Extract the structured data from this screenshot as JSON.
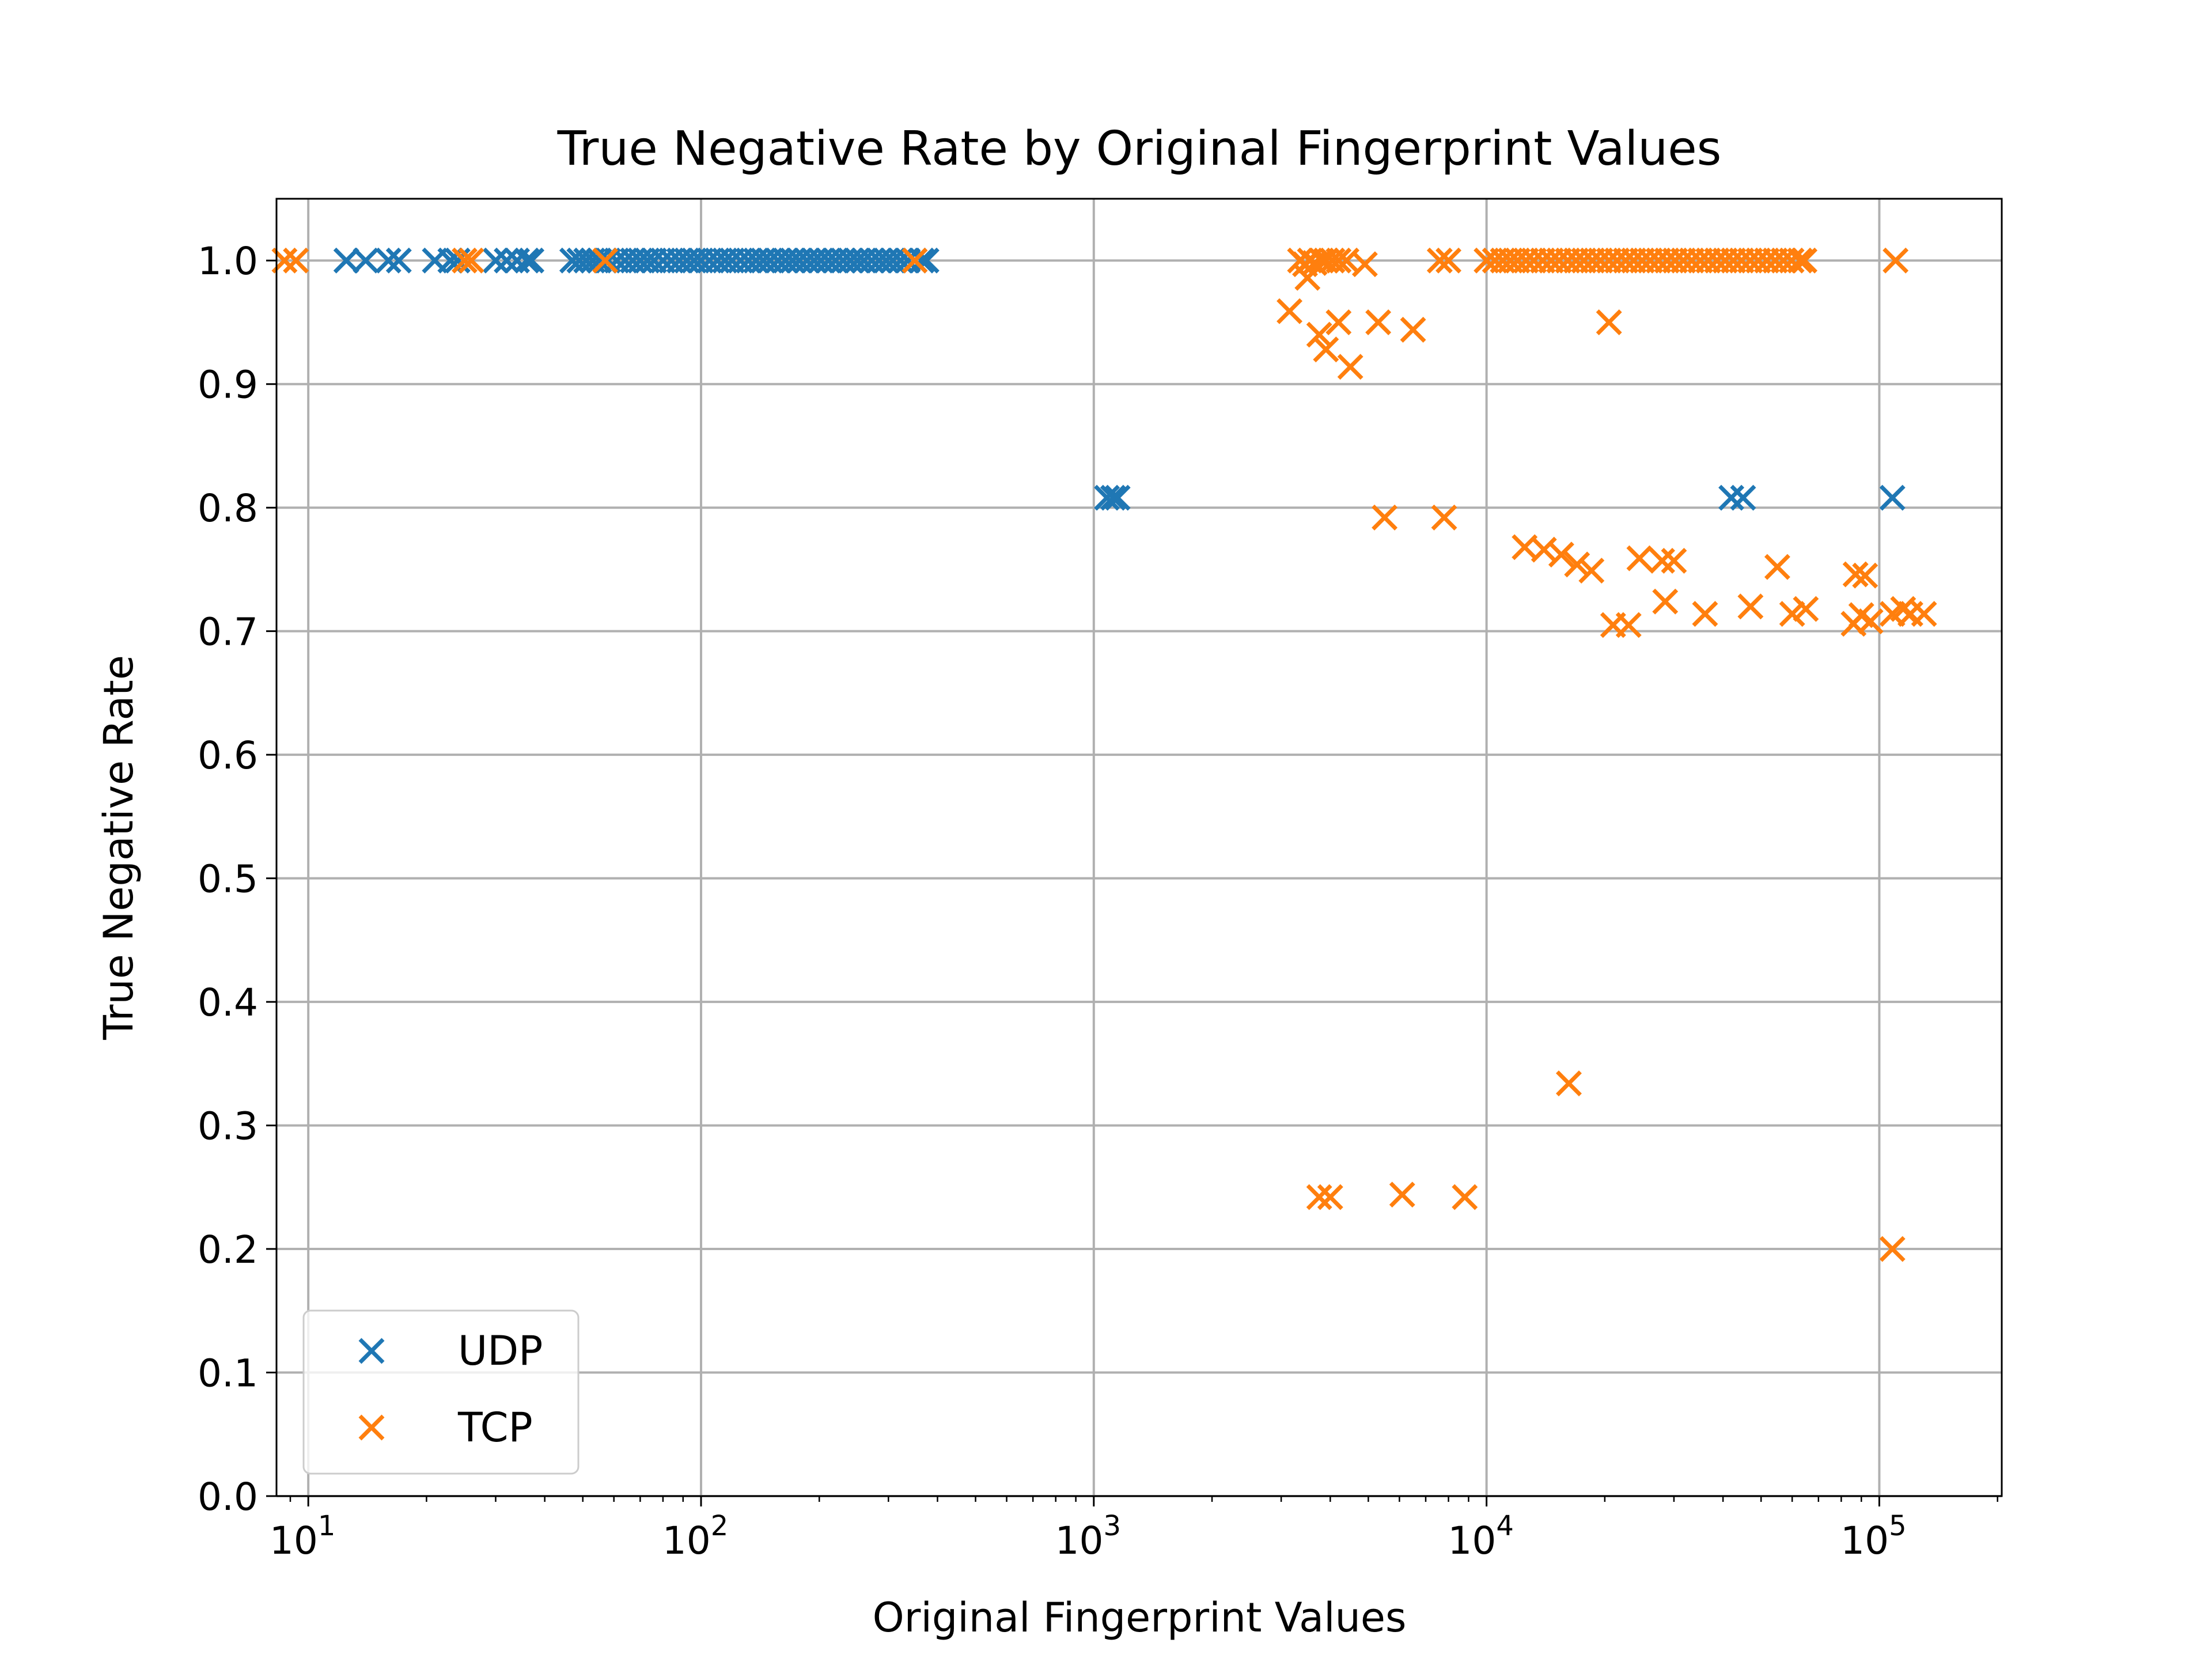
{
  "chart_data": {
    "type": "scatter",
    "title": "True Negative Rate by Original Fingerprint Values",
    "xlabel": "Original Fingerprint Values",
    "ylabel": "True Negative Rate",
    "xscale": "log",
    "xlim": [
      8.3,
      205000
    ],
    "ylim": [
      0.0,
      1.05
    ],
    "grid": true,
    "legend_position": "lower-left",
    "marker": "x",
    "x_ticks": [
      {
        "value": 10,
        "base": "10",
        "exp": "1"
      },
      {
        "value": 100,
        "base": "10",
        "exp": "2"
      },
      {
        "value": 1000,
        "base": "10",
        "exp": "3"
      },
      {
        "value": 10000,
        "base": "10",
        "exp": "4"
      },
      {
        "value": 100000,
        "base": "10",
        "exp": "5"
      }
    ],
    "y_ticks": [
      {
        "value": 0.0,
        "label": "0.0"
      },
      {
        "value": 0.1,
        "label": "0.1"
      },
      {
        "value": 0.2,
        "label": "0.2"
      },
      {
        "value": 0.3,
        "label": "0.3"
      },
      {
        "value": 0.4,
        "label": "0.4"
      },
      {
        "value": 0.5,
        "label": "0.5"
      },
      {
        "value": 0.6,
        "label": "0.6"
      },
      {
        "value": 0.7,
        "label": "0.7"
      },
      {
        "value": 0.8,
        "label": "0.8"
      },
      {
        "value": 0.9,
        "label": "0.9"
      },
      {
        "value": 1.0,
        "label": "1.0"
      }
    ],
    "series": [
      {
        "name": "UDP",
        "color": "#1f77b4",
        "points": [
          [
            12.5,
            1.0
          ],
          [
            14,
            1.0
          ],
          [
            16,
            1.0
          ],
          [
            17,
            1.0
          ],
          [
            21,
            1.0
          ],
          [
            23,
            1.0
          ],
          [
            24,
            1.0
          ],
          [
            30,
            1.0
          ],
          [
            32,
            1.0
          ],
          [
            34,
            1.0
          ],
          [
            36,
            1.0
          ],
          [
            37,
            1.0
          ],
          [
            47,
            1.0
          ],
          [
            49,
            1.0
          ],
          [
            51,
            1.0
          ],
          [
            53,
            1.0
          ],
          [
            55,
            1.0
          ],
          [
            58,
            1.0
          ],
          [
            61,
            1.0
          ],
          [
            64,
            1.0
          ],
          [
            67,
            1.0
          ],
          [
            70,
            1.0
          ],
          [
            73,
            1.0
          ],
          [
            76,
            1.0
          ],
          [
            80,
            1.0
          ],
          [
            84,
            1.0
          ],
          [
            88,
            1.0
          ],
          [
            92,
            1.0
          ],
          [
            96,
            1.0
          ],
          [
            100,
            1.0
          ],
          [
            105,
            1.0
          ],
          [
            110,
            1.0
          ],
          [
            115,
            1.0
          ],
          [
            120,
            1.0
          ],
          [
            126,
            1.0
          ],
          [
            132,
            1.0
          ],
          [
            138,
            1.0
          ],
          [
            144,
            1.0
          ],
          [
            150,
            1.0
          ],
          [
            157,
            1.0
          ],
          [
            164,
            1.0
          ],
          [
            171,
            1.0
          ],
          [
            178,
            1.0
          ],
          [
            186,
            1.0
          ],
          [
            194,
            1.0
          ],
          [
            202,
            1.0
          ],
          [
            211,
            1.0
          ],
          [
            220,
            1.0
          ],
          [
            230,
            1.0
          ],
          [
            240,
            1.0
          ],
          [
            250,
            1.0
          ],
          [
            260,
            1.0
          ],
          [
            272,
            1.0
          ],
          [
            284,
            1.0
          ],
          [
            296,
            1.0
          ],
          [
            308,
            1.0
          ],
          [
            322,
            1.0
          ],
          [
            336,
            1.0
          ],
          [
            350,
            1.0
          ],
          [
            365,
            1.0
          ],
          [
            375,
            1.0
          ],
          [
            1080,
            0.808
          ],
          [
            1120,
            0.808
          ],
          [
            1150,
            0.808
          ],
          [
            42000,
            0.808
          ],
          [
            45000,
            0.808
          ],
          [
            108000,
            0.808
          ]
        ]
      },
      {
        "name": "TCP",
        "color": "#ff7f0e",
        "points": [
          [
            8.7,
            1.0
          ],
          [
            9.3,
            1.0
          ],
          [
            25,
            1.0
          ],
          [
            26,
            1.0
          ],
          [
            57,
            1.0
          ],
          [
            350,
            1.0
          ],
          [
            3350,
            1.0
          ],
          [
            3450,
            0.997
          ],
          [
            3550,
            1.0
          ],
          [
            3650,
            0.998
          ],
          [
            3800,
            1.0
          ],
          [
            3900,
            1.0
          ],
          [
            4050,
            1.0
          ],
          [
            4200,
            1.0
          ],
          [
            4400,
            1.0
          ],
          [
            4900,
            0.997
          ],
          [
            7600,
            1.0
          ],
          [
            8000,
            1.0
          ],
          [
            3500,
            0.986
          ],
          [
            3150,
            0.959
          ],
          [
            3750,
            0.94
          ],
          [
            3900,
            0.928
          ],
          [
            4200,
            0.95
          ],
          [
            4500,
            0.914
          ],
          [
            5300,
            0.95
          ],
          [
            6500,
            0.944
          ],
          [
            10000,
            1.0
          ],
          [
            10500,
            1.0
          ],
          [
            11000,
            1.0
          ],
          [
            11500,
            1.0
          ],
          [
            12000,
            1.0
          ],
          [
            12600,
            1.0
          ],
          [
            13200,
            1.0
          ],
          [
            13900,
            1.0
          ],
          [
            14600,
            1.0
          ],
          [
            15300,
            1.0
          ],
          [
            16100,
            1.0
          ],
          [
            16900,
            1.0
          ],
          [
            17700,
            1.0
          ],
          [
            18600,
            1.0
          ],
          [
            19500,
            1.0
          ],
          [
            20500,
            1.0
          ],
          [
            21500,
            1.0
          ],
          [
            22600,
            1.0
          ],
          [
            23700,
            1.0
          ],
          [
            24900,
            1.0
          ],
          [
            26100,
            1.0
          ],
          [
            27400,
            1.0
          ],
          [
            28800,
            1.0
          ],
          [
            30200,
            1.0
          ],
          [
            31700,
            1.0
          ],
          [
            33300,
            1.0
          ],
          [
            35000,
            1.0
          ],
          [
            36700,
            1.0
          ],
          [
            38600,
            1.0
          ],
          [
            40500,
            1.0
          ],
          [
            42500,
            1.0
          ],
          [
            44600,
            1.0
          ],
          [
            46900,
            1.0
          ],
          [
            49200,
            1.0
          ],
          [
            51700,
            1.0
          ],
          [
            54300,
            1.0
          ],
          [
            57000,
            1.0
          ],
          [
            59800,
            1.0
          ],
          [
            62800,
            1.0
          ],
          [
            64500,
            1.0
          ],
          [
            110000,
            1.0
          ],
          [
            20500,
            0.95
          ],
          [
            5500,
            0.792
          ],
          [
            7800,
            0.792
          ],
          [
            12500,
            0.768
          ],
          [
            14000,
            0.766
          ],
          [
            15500,
            0.762
          ],
          [
            17000,
            0.754
          ],
          [
            18500,
            0.749
          ],
          [
            21000,
            0.705
          ],
          [
            23000,
            0.705
          ],
          [
            24500,
            0.759
          ],
          [
            28000,
            0.757
          ],
          [
            30000,
            0.757
          ],
          [
            28500,
            0.724
          ],
          [
            36000,
            0.714
          ],
          [
            47000,
            0.72
          ],
          [
            55000,
            0.752
          ],
          [
            60000,
            0.714
          ],
          [
            65000,
            0.718
          ],
          [
            87000,
            0.746
          ],
          [
            92000,
            0.745
          ],
          [
            86000,
            0.706
          ],
          [
            90000,
            0.713
          ],
          [
            95000,
            0.708
          ],
          [
            108000,
            0.714
          ],
          [
            115000,
            0.718
          ],
          [
            120000,
            0.714
          ],
          [
            130000,
            0.714
          ],
          [
            16200,
            0.334
          ],
          [
            3750,
            0.242
          ],
          [
            4000,
            0.242
          ],
          [
            6100,
            0.244
          ],
          [
            8800,
            0.242
          ],
          [
            108000,
            0.2
          ]
        ]
      }
    ]
  }
}
